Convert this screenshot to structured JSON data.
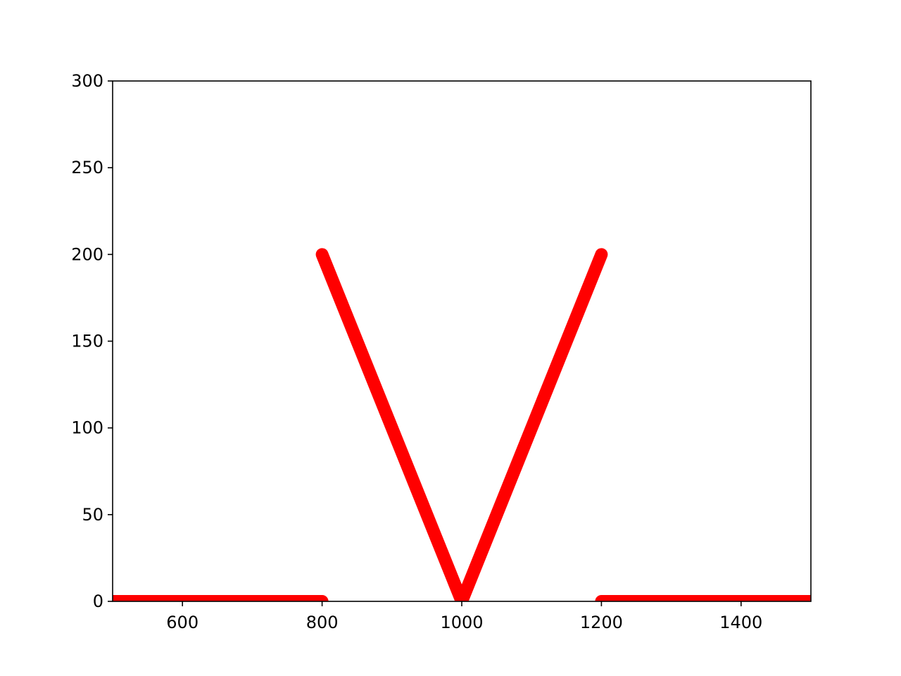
{
  "chart_data": {
    "type": "line",
    "title": "",
    "xlabel": "",
    "ylabel": "",
    "xlim": [
      500,
      1500
    ],
    "ylim": [
      0,
      300
    ],
    "x_ticks": [
      600,
      800,
      1000,
      1200,
      1400
    ],
    "y_ticks": [
      0,
      50,
      100,
      150,
      200,
      250,
      300
    ],
    "grid": false,
    "legend": "none",
    "series": [
      {
        "color": "#ff0000",
        "segments": [
          {
            "x": [
              500,
              800
            ],
            "y": [
              0,
              0
            ]
          },
          {
            "x": [
              800,
              1000,
              1200
            ],
            "y": [
              200,
              0,
              200
            ]
          },
          {
            "x": [
              1200,
              1500
            ],
            "y": [
              0,
              0
            ]
          }
        ]
      }
    ]
  },
  "colors": {
    "background": "#ffffff",
    "axes": "#000000",
    "line": "#ff0000"
  }
}
